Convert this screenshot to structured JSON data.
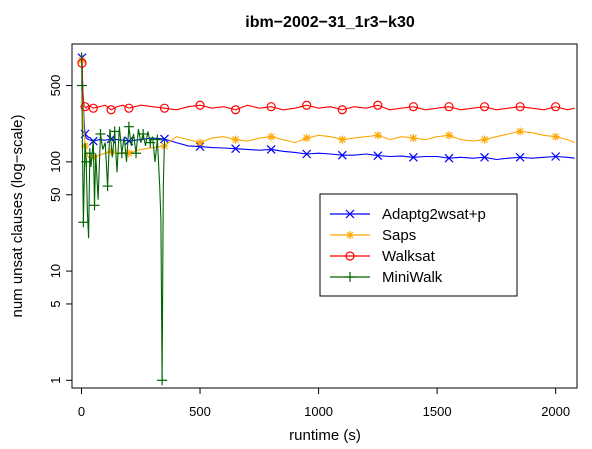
{
  "chart_data": {
    "type": "line",
    "title": "ibm−2002−31_1r3−k30",
    "xlabel": "runtime (s)",
    "ylabel": "num unsat clauses (log−scale)",
    "xlim": [
      -40,
      2090
    ],
    "ylim": [
      0.85,
      1200
    ],
    "y_scale": "log",
    "grid": false,
    "legend_position": "right-center",
    "x_ticks": [
      {
        "value": 0,
        "label": "0"
      },
      {
        "value": 500,
        "label": "500"
      },
      {
        "value": 1000,
        "label": "1000"
      },
      {
        "value": 1500,
        "label": "1500"
      },
      {
        "value": 2000,
        "label": "2000"
      }
    ],
    "y_ticks": [
      {
        "value": 1,
        "label": "1"
      },
      {
        "value": 5,
        "label": "5"
      },
      {
        "value": 10,
        "label": "10"
      },
      {
        "value": 50,
        "label": "50"
      },
      {
        "value": 100,
        "label": "100"
      },
      {
        "value": 500,
        "label": "500"
      }
    ],
    "series": [
      {
        "name": "Adaptg2wsat+p",
        "color": "#0000ff",
        "marker": "x",
        "x": [
          0,
          2,
          5,
          10,
          15,
          20,
          30,
          50,
          75,
          100,
          125,
          150,
          175,
          200,
          250,
          300,
          350,
          400,
          450,
          500,
          550,
          600,
          650,
          700,
          750,
          800,
          850,
          900,
          950,
          1000,
          1050,
          1100,
          1150,
          1200,
          1250,
          1300,
          1350,
          1400,
          1450,
          1500,
          1550,
          1600,
          1650,
          1700,
          1750,
          1800,
          1850,
          1900,
          1950,
          2000,
          2050,
          2080
        ],
        "y": [
          1000,
          900,
          500,
          250,
          180,
          165,
          160,
          155,
          160,
          158,
          162,
          160,
          158,
          155,
          160,
          165,
          162,
          150,
          140,
          138,
          135,
          134,
          132,
          130,
          128,
          130,
          125,
          122,
          118,
          120,
          118,
          115,
          115,
          118,
          114,
          112,
          113,
          110,
          112,
          112,
          108,
          110,
          108,
          110,
          105,
          108,
          110,
          108,
          110,
          112,
          110,
          108
        ]
      },
      {
        "name": "Saps",
        "color": "#ffa500",
        "marker": "*",
        "x": [
          0,
          2,
          5,
          10,
          15,
          20,
          30,
          50,
          75,
          100,
          125,
          150,
          175,
          200,
          250,
          300,
          350,
          400,
          450,
          500,
          550,
          600,
          650,
          700,
          750,
          800,
          850,
          900,
          950,
          1000,
          1050,
          1100,
          1150,
          1200,
          1250,
          1300,
          1350,
          1400,
          1450,
          1500,
          1550,
          1600,
          1650,
          1700,
          1750,
          1800,
          1850,
          1900,
          1950,
          2000,
          2050,
          2080
        ],
        "y": [
          1000,
          850,
          400,
          200,
          140,
          120,
          110,
          110,
          115,
          120,
          125,
          118,
          122,
          120,
          130,
          135,
          140,
          170,
          160,
          150,
          165,
          170,
          160,
          155,
          165,
          170,
          160,
          150,
          165,
          175,
          170,
          160,
          165,
          170,
          175,
          160,
          170,
          165,
          160,
          170,
          175,
          160,
          155,
          160,
          170,
          180,
          190,
          185,
          175,
          170,
          160,
          150
        ]
      },
      {
        "name": "Walksat",
        "color": "#ff0000",
        "marker": "o",
        "x": [
          0,
          2,
          5,
          10,
          15,
          20,
          30,
          50,
          75,
          100,
          125,
          150,
          175,
          200,
          250,
          300,
          350,
          400,
          450,
          500,
          550,
          600,
          650,
          700,
          750,
          800,
          850,
          900,
          950,
          1000,
          1050,
          1100,
          1150,
          1200,
          1250,
          1300,
          1350,
          1400,
          1450,
          1500,
          1550,
          1600,
          1650,
          1700,
          1750,
          1800,
          1850,
          1900,
          1950,
          2000,
          2050,
          2080
        ],
        "y": [
          1000,
          800,
          450,
          330,
          320,
          310,
          330,
          310,
          320,
          330,
          300,
          320,
          330,
          310,
          330,
          320,
          310,
          300,
          320,
          330,
          310,
          320,
          300,
          330,
          310,
          320,
          300,
          310,
          330,
          310,
          320,
          300,
          320,
          310,
          330,
          300,
          310,
          320,
          300,
          310,
          320,
          300,
          310,
          320,
          300,
          310,
          320,
          310,
          300,
          320,
          300,
          310
        ]
      },
      {
        "name": "MiniWalk",
        "color": "#006400",
        "marker": "+",
        "x": [
          0,
          2,
          4,
          6,
          8,
          10,
          15,
          20,
          25,
          30,
          35,
          40,
          50,
          55,
          60,
          70,
          80,
          90,
          100,
          110,
          120,
          130,
          140,
          150,
          160,
          170,
          180,
          190,
          200,
          210,
          220,
          230,
          240,
          250,
          260,
          270,
          280,
          290,
          300,
          310,
          320,
          330,
          335,
          340,
          345,
          350
        ],
        "y": [
          1000,
          500,
          150,
          60,
          28,
          50,
          150,
          100,
          35,
          20,
          120,
          90,
          160,
          40,
          120,
          45,
          180,
          130,
          150,
          60,
          200,
          110,
          190,
          80,
          210,
          120,
          170,
          100,
          210,
          140,
          180,
          120,
          200,
          150,
          180,
          140,
          190,
          150,
          170,
          100,
          160,
          60,
          30,
          1,
          60,
          160
        ]
      }
    ]
  }
}
